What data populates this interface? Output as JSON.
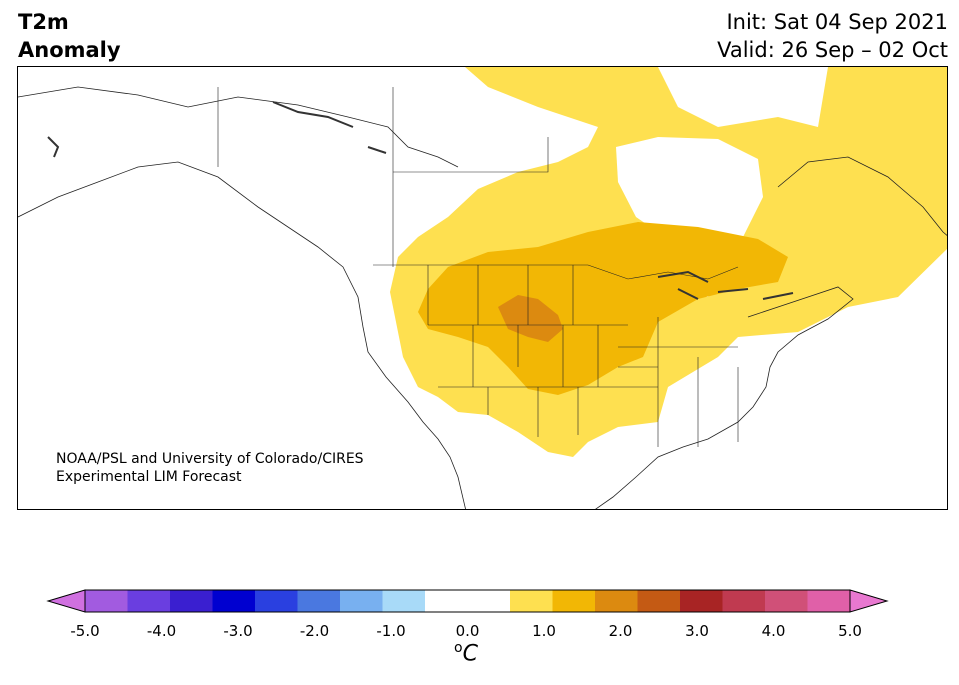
{
  "title": {
    "line1": "T2m",
    "line2": "Anomaly"
  },
  "header_right": {
    "init": "Init: Sat 04 Sep 2021",
    "valid": "Valid: 26 Sep – 02 Oct"
  },
  "credit": {
    "line1": "NOAA/PSL and University of Colorado/CIRES",
    "line2": "Experimental LIM Forecast"
  },
  "colorbar": {
    "unit": "C",
    "unit_superscript": "o",
    "ticks": [
      "-5.0",
      "-4.0",
      "-3.0",
      "-2.0",
      "-1.0",
      "0.0",
      "1.0",
      "2.0",
      "3.0",
      "4.0",
      "5.0"
    ],
    "colors": [
      "#d070e0",
      "#a25be0",
      "#6a3ee0",
      "#3a1fd0",
      "#0000d0",
      "#2a40e0",
      "#4a78e0",
      "#78b0f0",
      "#a8daf8",
      "#ffffff",
      "#ffffff",
      "#fee050",
      "#f2b705",
      "#dc8a10",
      "#c45a14",
      "#a82424",
      "#c03a50",
      "#d05078",
      "#e060a8",
      "#e878d0"
    ]
  },
  "map": {
    "colors": {
      "light_warm": "#fee050",
      "mid_warm": "#f2b705",
      "strong_warm": "#dc8a10"
    }
  }
}
